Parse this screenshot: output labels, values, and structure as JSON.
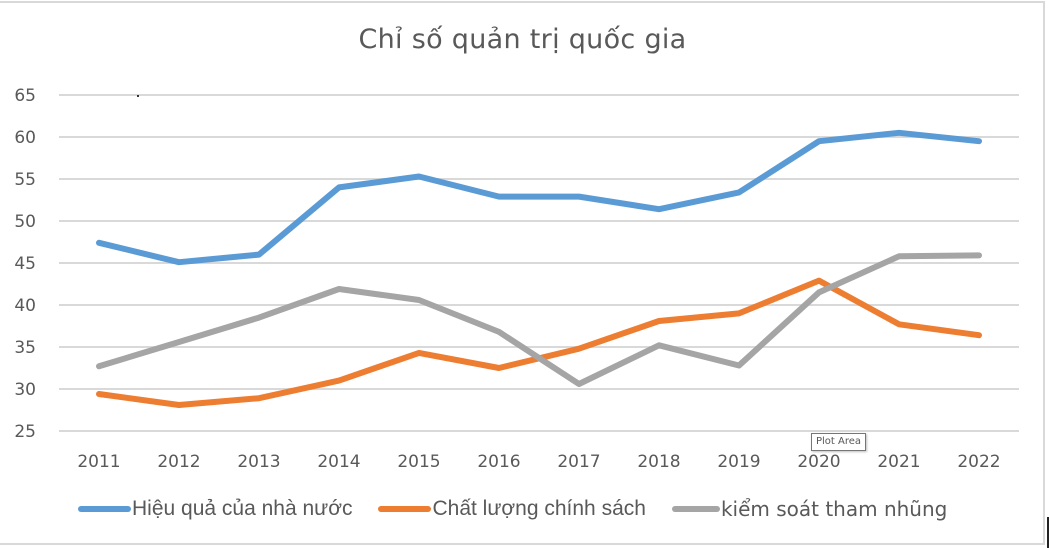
{
  "chart": {
    "title": "Chỉ số quản trị quốc gia",
    "tooltip": "Plot Area"
  },
  "colors": {
    "series_0": "#5b9bd5",
    "series_1": "#ed7d31",
    "series_2": "#a5a5a5",
    "gridline": "#d9d9d9",
    "text": "#595959"
  },
  "chart_data": {
    "type": "line",
    "title": "Chỉ số quản trị quốc gia",
    "xlabel": "",
    "ylabel": "",
    "categories": [
      "2011",
      "2012",
      "2013",
      "2014",
      "2015",
      "2016",
      "2017",
      "2018",
      "2019",
      "2020",
      "2021",
      "2022"
    ],
    "series": [
      {
        "name": "Hiệu quả của nhà nước",
        "color": "#5b9bd5",
        "values": [
          47.4,
          45.1,
          46.0,
          54.0,
          55.3,
          52.9,
          52.9,
          51.4,
          53.4,
          59.5,
          60.5,
          59.5
        ]
      },
      {
        "name": "Chất lượng chính sách",
        "color": "#ed7d31",
        "values": [
          29.4,
          28.1,
          28.9,
          31.0,
          34.3,
          32.5,
          34.8,
          38.1,
          39.0,
          42.9,
          37.7,
          36.4
        ]
      },
      {
        "name": "kiểm soát tham nhũng",
        "color": "#a5a5a5",
        "values": [
          32.7,
          35.6,
          38.5,
          41.9,
          40.6,
          36.8,
          30.6,
          35.2,
          32.8,
          41.5,
          45.8,
          45.9
        ]
      }
    ],
    "ylim": [
      25,
      65
    ],
    "yticks": [
      65,
      60,
      55,
      50,
      45,
      40,
      35,
      30,
      25
    ],
    "grid": true,
    "legend_position": "bottom"
  },
  "legend": {
    "items": [
      {
        "label": "Hiệu quả của nhà nước"
      },
      {
        "label": "Chất lượng chính sách"
      },
      {
        "label": "kiểm soát tham nhũng"
      }
    ]
  }
}
